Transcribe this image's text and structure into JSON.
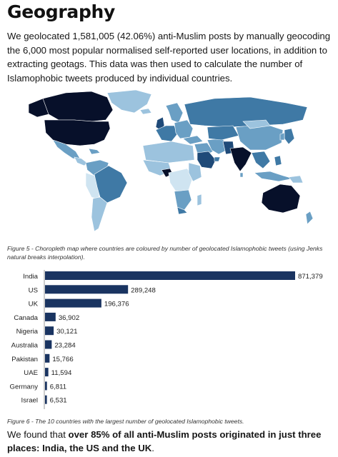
{
  "heading": "Geography",
  "intro": "We geolocated 1,581,005 (42.06%) anti-Muslim posts by manually geocoding the 6,000 most popular normalised self-reported user locations, in addition to extracting geotags. This data was then used to calculate the number of Islamophobic tweets produced by individual countries.",
  "map": {
    "colors": {
      "highest": "#07102a",
      "high": "#1f4a78",
      "mid_high": "#3f79a5",
      "mid": "#6a9fc4",
      "low": "#9cc3de",
      "lowest": "#cfe4f1",
      "no_data": "#e6cbbf"
    }
  },
  "figure5_caption": "Figure 5 - Choropleth map where countries are coloured by number of geolocated Islamophobic tweets (using Jenks natural breaks interpolation).",
  "chart_data": {
    "type": "bar",
    "orientation": "horizontal",
    "categories": [
      "India",
      "US",
      "UK",
      "Canada",
      "Nigeria",
      "Australia",
      "Pakistan",
      "UAE",
      "Germany",
      "Israel"
    ],
    "values": [
      871379,
      289248,
      196376,
      36902,
      30121,
      23284,
      15766,
      11594,
      6811,
      6531
    ],
    "value_labels": [
      "871,379",
      "289,248",
      "196,376",
      "36,902",
      "30,121",
      "23,284",
      "15,766",
      "11,594",
      "6,811",
      "6,531"
    ],
    "bar_color": "#1a3461",
    "xlim": [
      0,
      871379
    ],
    "title": "",
    "xlabel": "",
    "ylabel": ""
  },
  "figure6_caption": "Figure 6 - The 10 countries with the largest number of geolocated Islamophobic tweets.",
  "closing": {
    "prefix": "We found that ",
    "bold": "over 85% of all anti-Muslim posts originated in just three places: India, the US and the UK",
    "suffix": "."
  }
}
